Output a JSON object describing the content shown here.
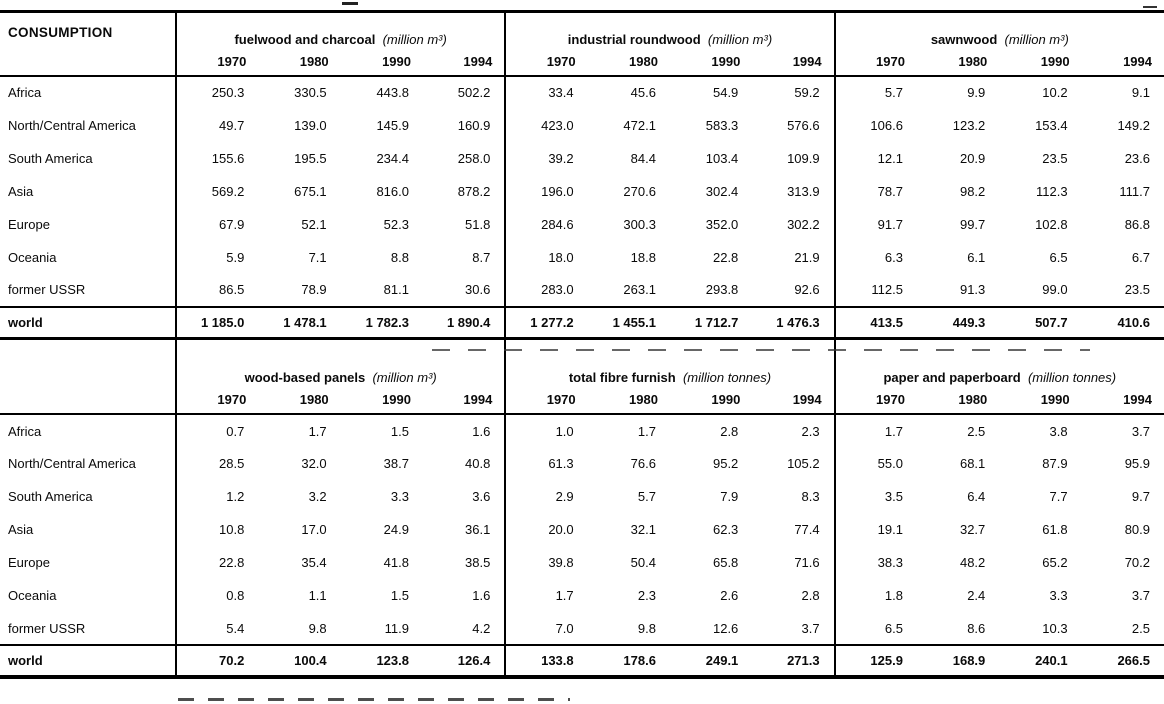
{
  "table": {
    "corner_label": "CONSUMPTION",
    "years": [
      "1970",
      "1980",
      "1990",
      "1994"
    ],
    "regions": [
      "Africa",
      "North/Central America",
      "South America",
      "Asia",
      "Europe",
      "Oceania",
      "former USSR"
    ],
    "world_label": "world",
    "halves": [
      {
        "sections": [
          {
            "title": "fuelwood and charcoal",
            "unit": "(million m³)",
            "rows": [
              [
                "250.3",
                "330.5",
                "443.8",
                "502.2"
              ],
              [
                "49.7",
                "139.0",
                "145.9",
                "160.9"
              ],
              [
                "155.6",
                "195.5",
                "234.4",
                "258.0"
              ],
              [
                "569.2",
                "675.1",
                "816.0",
                "878.2"
              ],
              [
                "67.9",
                "52.1",
                "52.3",
                "51.8"
              ],
              [
                "5.9",
                "7.1",
                "8.8",
                "8.7"
              ],
              [
                "86.5",
                "78.9",
                "81.1",
                "30.6"
              ]
            ],
            "world": [
              "1 185.0",
              "1 478.1",
              "1 782.3",
              "1 890.4"
            ]
          },
          {
            "title": "industrial roundwood",
            "unit": "(million m³)",
            "rows": [
              [
                "33.4",
                "45.6",
                "54.9",
                "59.2"
              ],
              [
                "423.0",
                "472.1",
                "583.3",
                "576.6"
              ],
              [
                "39.2",
                "84.4",
                "103.4",
                "109.9"
              ],
              [
                "196.0",
                "270.6",
                "302.4",
                "313.9"
              ],
              [
                "284.6",
                "300.3",
                "352.0",
                "302.2"
              ],
              [
                "18.0",
                "18.8",
                "22.8",
                "21.9"
              ],
              [
                "283.0",
                "263.1",
                "293.8",
                "92.6"
              ]
            ],
            "world": [
              "1 277.2",
              "1 455.1",
              "1 712.7",
              "1 476.3"
            ]
          },
          {
            "title": "sawnwood",
            "unit": "(million m³)",
            "rows": [
              [
                "5.7",
                "9.9",
                "10.2",
                "9.1"
              ],
              [
                "106.6",
                "123.2",
                "153.4",
                "149.2"
              ],
              [
                "12.1",
                "20.9",
                "23.5",
                "23.6"
              ],
              [
                "78.7",
                "98.2",
                "112.3",
                "111.7"
              ],
              [
                "91.7",
                "99.7",
                "102.8",
                "86.8"
              ],
              [
                "6.3",
                "6.1",
                "6.5",
                "6.7"
              ],
              [
                "112.5",
                "91.3",
                "99.0",
                "23.5"
              ]
            ],
            "world": [
              "413.5",
              "449.3",
              "507.7",
              "410.6"
            ]
          }
        ]
      },
      {
        "sections": [
          {
            "title": "wood-based panels",
            "unit": "(million m³)",
            "rows": [
              [
                "0.7",
                "1.7",
                "1.5",
                "1.6"
              ],
              [
                "28.5",
                "32.0",
                "38.7",
                "40.8"
              ],
              [
                "1.2",
                "3.2",
                "3.3",
                "3.6"
              ],
              [
                "10.8",
                "17.0",
                "24.9",
                "36.1"
              ],
              [
                "22.8",
                "35.4",
                "41.8",
                "38.5"
              ],
              [
                "0.8",
                "1.1",
                "1.5",
                "1.6"
              ],
              [
                "5.4",
                "9.8",
                "11.9",
                "4.2"
              ]
            ],
            "world": [
              "70.2",
              "100.4",
              "123.8",
              "126.4"
            ]
          },
          {
            "title": "total fibre furnish",
            "unit": "(million tonnes)",
            "rows": [
              [
                "1.0",
                "1.7",
                "2.8",
                "2.3"
              ],
              [
                "61.3",
                "76.6",
                "95.2",
                "105.2"
              ],
              [
                "2.9",
                "5.7",
                "7.9",
                "8.3"
              ],
              [
                "20.0",
                "32.1",
                "62.3",
                "77.4"
              ],
              [
                "39.8",
                "50.4",
                "65.8",
                "71.6"
              ],
              [
                "1.7",
                "2.3",
                "2.6",
                "2.8"
              ],
              [
                "7.0",
                "9.8",
                "12.6",
                "3.7"
              ]
            ],
            "world": [
              "133.8",
              "178.6",
              "249.1",
              "271.3"
            ]
          },
          {
            "title": "paper and paperboard",
            "unit": "(million tonnes)",
            "rows": [
              [
                "1.7",
                "2.5",
                "3.8",
                "3.7"
              ],
              [
                "55.0",
                "68.1",
                "87.9",
                "95.9"
              ],
              [
                "3.5",
                "6.4",
                "7.7",
                "9.7"
              ],
              [
                "19.1",
                "32.7",
                "61.8",
                "80.9"
              ],
              [
                "38.3",
                "48.2",
                "65.2",
                "70.2"
              ],
              [
                "1.8",
                "2.4",
                "3.3",
                "3.7"
              ],
              [
                "6.5",
                "8.6",
                "10.3",
                "2.5"
              ]
            ],
            "world": [
              "125.9",
              "168.9",
              "240.1",
              "266.5"
            ]
          }
        ]
      }
    ]
  },
  "colors": {
    "ink": "#000000",
    "paper": "#ffffff"
  }
}
